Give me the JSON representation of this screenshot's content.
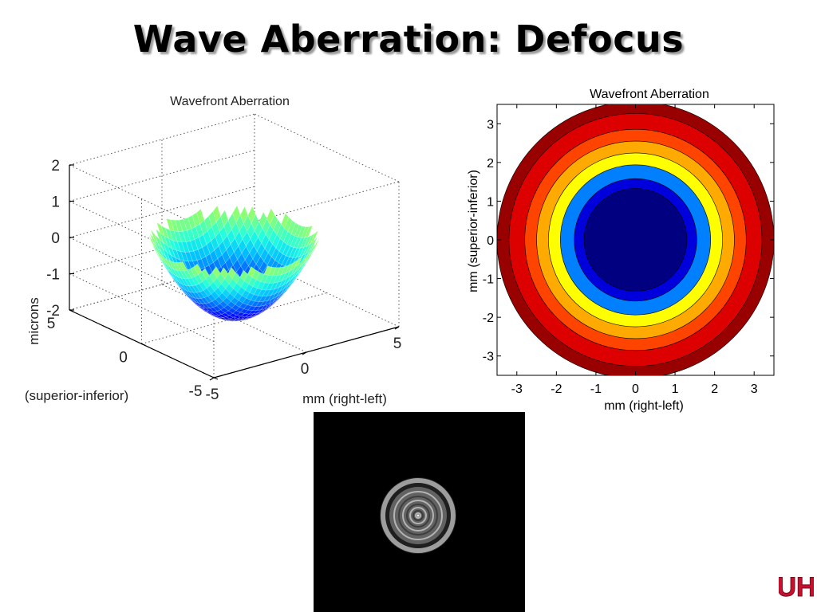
{
  "slide": {
    "title": "Wave Aberration: Defocus"
  },
  "colors": {
    "jet": [
      "#00008f",
      "#0000ff",
      "#0060ff",
      "#00bfff",
      "#20ffdf",
      "#80ff80",
      "#dfff20",
      "#ffbf00",
      "#ff6000",
      "#ff0000",
      "#800000"
    ],
    "contour_levels": [
      "#000080",
      "#0000dd",
      "#0080ff",
      "#00ddff",
      "#80ff80",
      "#ffff00",
      "#ffaa00",
      "#ff4400",
      "#dd0000",
      "#990000"
    ],
    "logo": "#c8102e"
  },
  "psf_image": {
    "background": "#000000",
    "ring_color": "#c8c8c8"
  },
  "logo": {
    "icon": "university-of-houston-logo",
    "text": "UH"
  },
  "chart_data": [
    {
      "type": "surface",
      "title": "Wavefront Aberration",
      "function": "W = 0.17 * r^2 - 2 (paraboloid, microns)",
      "x_label": "mm (right-left)",
      "y_label": "(superior-inferior)",
      "z_label": "microns",
      "x_range": [
        -5,
        5
      ],
      "y_range": [
        -5,
        5
      ],
      "z_range": [
        -2,
        2
      ],
      "pupil_radius": 3.5,
      "x_ticks": [
        "-5",
        "0",
        "5"
      ],
      "y_ticks": [
        "-5",
        "0",
        "5"
      ],
      "z_ticks": [
        "2",
        "1",
        "0",
        "-1",
        "-2"
      ],
      "grid": true
    },
    {
      "type": "contour",
      "title": "Wavefront Aberration",
      "x_label": "mm (right-left)",
      "y_label": "mm (superior-inferior)",
      "x_range": [
        -3.5,
        3.5
      ],
      "y_range": [
        -3.5,
        3.5
      ],
      "x_ticks": [
        "-3",
        "-2",
        "-1",
        "0",
        "1",
        "2",
        "3"
      ],
      "y_ticks": [
        "3",
        "2",
        "1",
        "0",
        "-1",
        "-2",
        "-3"
      ],
      "contour_radii": [
        3.5,
        3.2,
        2.8,
        2.5,
        2.2,
        1.8,
        1.4
      ],
      "contour_level_indices": [
        9,
        8,
        7,
        6,
        5,
        4,
        3
      ],
      "pupil_radius": 3.5
    }
  ]
}
